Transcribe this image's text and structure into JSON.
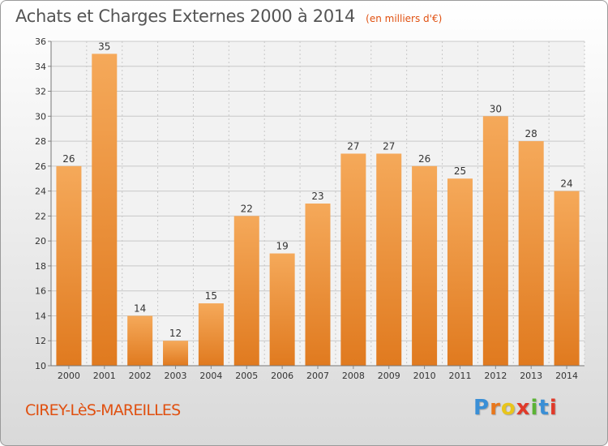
{
  "header": {
    "title": "Achats et Charges Externes 2000 à 2014",
    "subtitle": "(en milliers d'€)"
  },
  "location": "CIREY-LèS-MAREILLES",
  "logo": {
    "text": "Proxiti",
    "letter_colors": [
      "#3a8fd6",
      "#e8771c",
      "#e8c51c",
      "#e03a2a",
      "#5bb335",
      "#3a8fd6",
      "#e03a2a"
    ]
  },
  "colors": {
    "bar_light": "#f5a95a",
    "bar_dark": "#e07a1f",
    "grid": "#c8c8c8",
    "axis_text": "#333333",
    "accent": "#e05010"
  },
  "chart_data": {
    "type": "bar",
    "categories": [
      "2000",
      "2001",
      "2002",
      "2003",
      "2004",
      "2005",
      "2006",
      "2007",
      "2008",
      "2009",
      "2010",
      "2011",
      "2012",
      "2013",
      "2014"
    ],
    "values": [
      26,
      35,
      14,
      12,
      15,
      22,
      19,
      23,
      27,
      27,
      26,
      25,
      30,
      28,
      24
    ],
    "ylim": [
      10,
      36
    ],
    "yticks": [
      10,
      12,
      14,
      16,
      18,
      20,
      22,
      24,
      26,
      28,
      30,
      32,
      34,
      36
    ],
    "grid": true,
    "data_labels": true
  }
}
